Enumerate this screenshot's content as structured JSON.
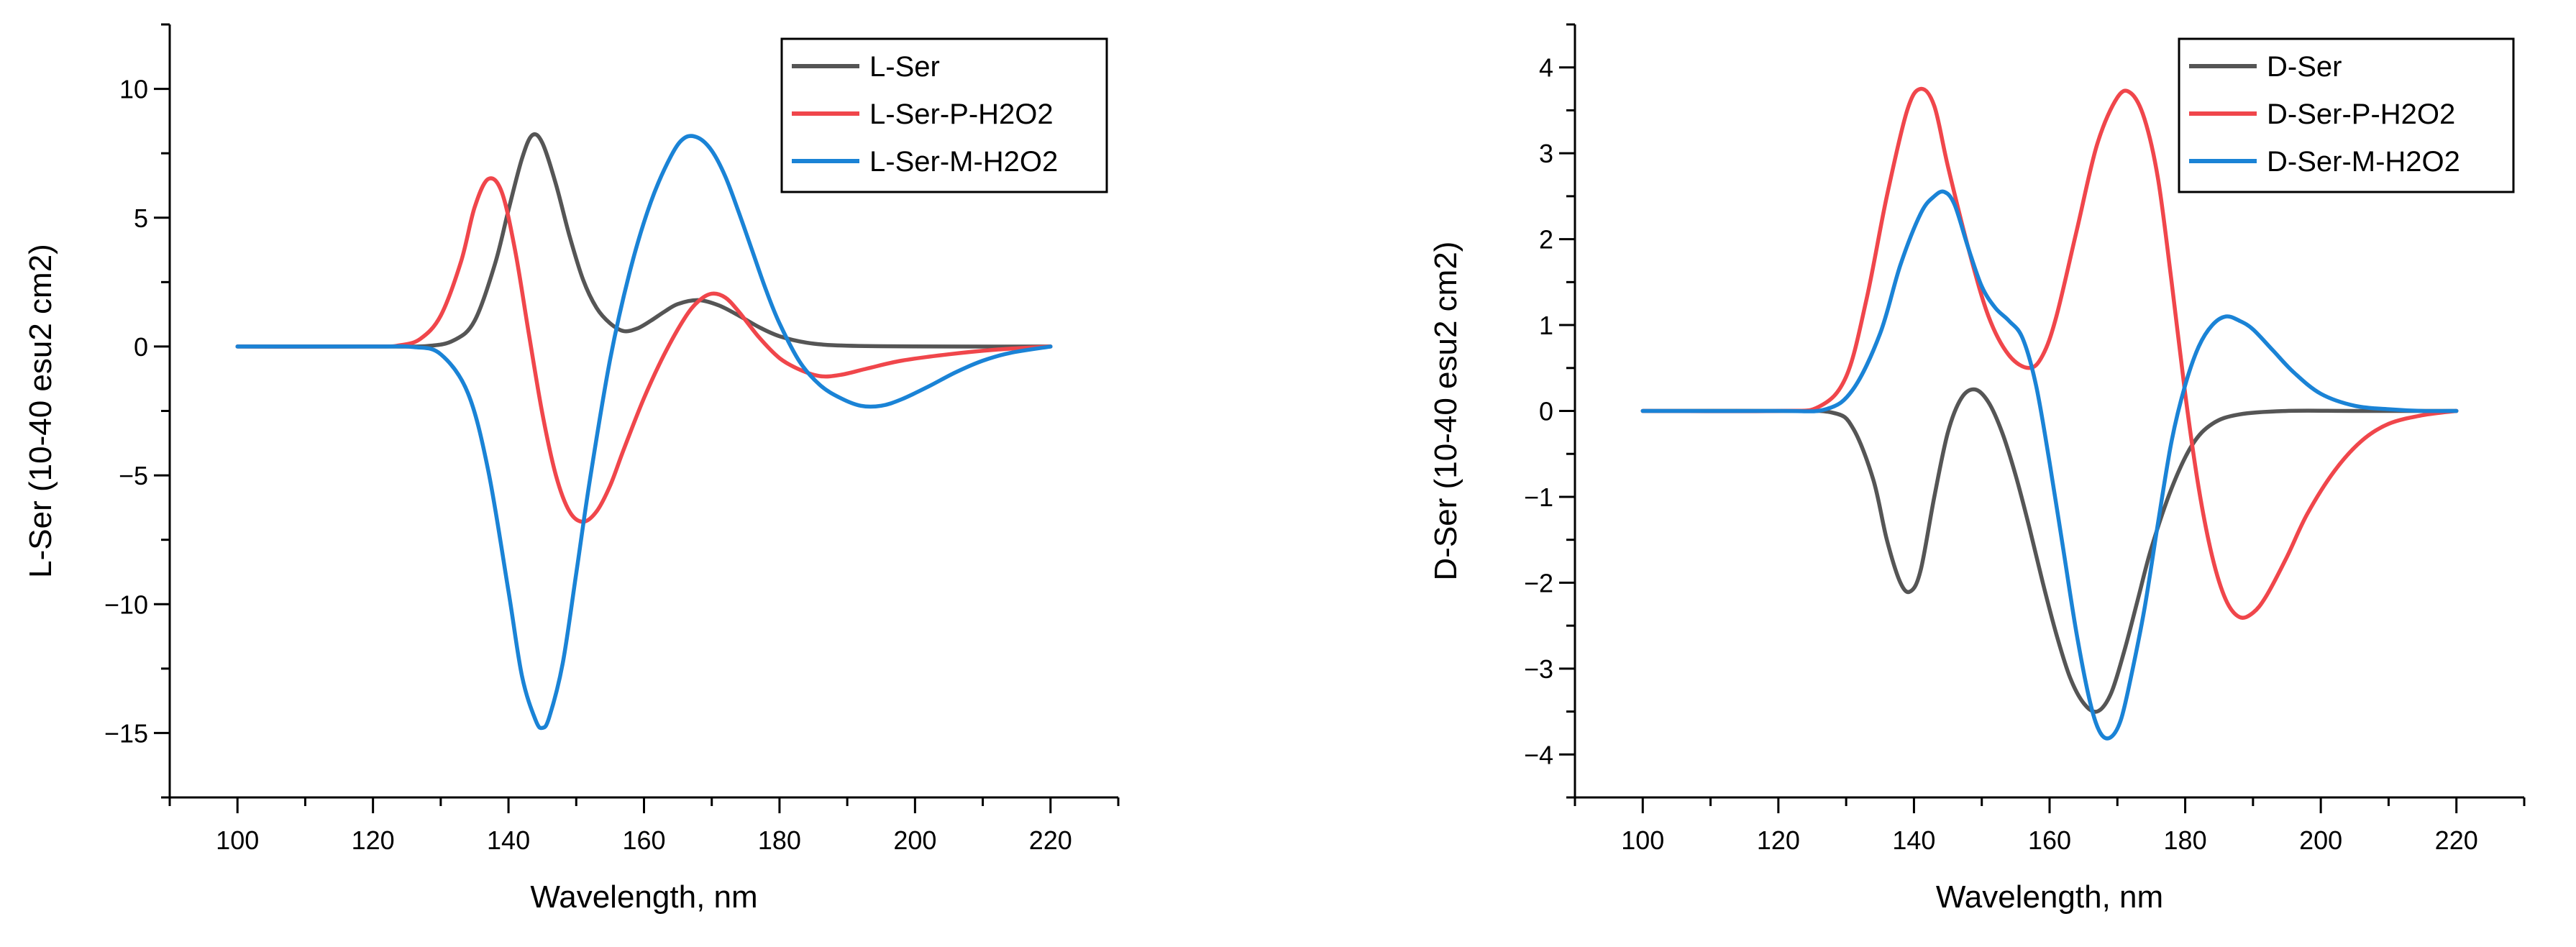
{
  "chart_data": [
    {
      "type": "line",
      "xlabel": "Wavelength, nm",
      "ylabel": "L-Ser (10-40 esu2 cm2)",
      "xlim": [
        90,
        230
      ],
      "ylim": [
        -17.5,
        12.5
      ],
      "xticks": [
        100,
        120,
        140,
        160,
        180,
        200,
        220
      ],
      "yticks": [
        -15,
        -10,
        -5,
        0,
        5,
        10
      ],
      "ytick_labels": [
        "−15",
        "−10",
        "−5",
        "0",
        "5",
        "10"
      ],
      "legend_position": "top-right",
      "series": [
        {
          "name": "L-Ser",
          "color": "#555555",
          "x": [
            100,
            120,
            128,
            132,
            135,
            138,
            140,
            142,
            143.5,
            145,
            147,
            149,
            151,
            153,
            155,
            157,
            159,
            161,
            163,
            165,
            168,
            171,
            174,
            177,
            180,
            184,
            188,
            195,
            205,
            220
          ],
          "y": [
            0,
            0,
            0.02,
            0.25,
            1.0,
            3.2,
            5.3,
            7.3,
            8.2,
            7.9,
            6.3,
            4.3,
            2.6,
            1.5,
            0.9,
            0.6,
            0.7,
            1.0,
            1.35,
            1.65,
            1.8,
            1.6,
            1.2,
            0.75,
            0.4,
            0.15,
            0.05,
            0.01,
            0,
            0
          ]
        },
        {
          "name": "L-Ser-P-H2O2",
          "color": "#f0464b",
          "x": [
            100,
            120,
            124,
            127,
            130,
            133,
            135,
            137,
            139,
            141,
            143,
            145,
            147,
            149,
            151,
            153,
            155,
            157,
            160,
            163,
            166,
            168,
            170,
            172,
            174,
            177,
            180,
            183,
            186,
            189,
            193,
            198,
            205,
            212,
            220
          ],
          "y": [
            0,
            0,
            0.05,
            0.3,
            1.2,
            3.3,
            5.4,
            6.5,
            6.0,
            3.7,
            0.5,
            -2.6,
            -5.0,
            -6.4,
            -6.8,
            -6.4,
            -5.4,
            -4.0,
            -2.0,
            -0.3,
            1.1,
            1.75,
            2.05,
            1.9,
            1.35,
            0.35,
            -0.45,
            -0.9,
            -1.15,
            -1.1,
            -0.85,
            -0.55,
            -0.3,
            -0.12,
            0
          ]
        },
        {
          "name": "L-Ser-M-H2O2",
          "color": "#1a83d6",
          "x": [
            100,
            120,
            126,
            130,
            134,
            137,
            140,
            142,
            144,
            145,
            146,
            148,
            150,
            152,
            155,
            158,
            161,
            164,
            166,
            168,
            170,
            172,
            174,
            176,
            178,
            180,
            183,
            186,
            189,
            192,
            195,
            198,
            202,
            206,
            210,
            214,
            220
          ],
          "y": [
            0,
            0,
            -0.02,
            -0.3,
            -1.8,
            -4.8,
            -9.5,
            -12.8,
            -14.5,
            -14.8,
            -14.4,
            -12.3,
            -8.8,
            -5.2,
            -0.5,
            3.0,
            5.6,
            7.4,
            8.1,
            8.1,
            7.6,
            6.6,
            5.2,
            3.7,
            2.2,
            0.9,
            -0.6,
            -1.5,
            -2.0,
            -2.3,
            -2.3,
            -2.05,
            -1.55,
            -1.0,
            -0.55,
            -0.25,
            0
          ]
        }
      ]
    },
    {
      "type": "line",
      "xlabel": "Wavelength, nm",
      "ylabel": "D-Ser (10-40 esu2 cm2)",
      "xlim": [
        90,
        230
      ],
      "ylim": [
        -4.5,
        4.5
      ],
      "xticks": [
        100,
        120,
        140,
        160,
        180,
        200,
        220
      ],
      "yticks": [
        -4,
        -3,
        -2,
        -1,
        0,
        1,
        2,
        3,
        4
      ],
      "ytick_labels": [
        "−4",
        "−3",
        "−2",
        "−1",
        "0",
        "1",
        "2",
        "3",
        "4"
      ],
      "legend_position": "top-right",
      "series": [
        {
          "name": "D-Ser",
          "color": "#555555",
          "x": [
            100,
            120,
            128,
            131,
            134,
            136,
            138,
            139.5,
            141,
            143,
            145,
            147,
            149,
            151,
            153,
            155,
            157,
            159,
            161,
            163,
            165,
            167,
            169,
            171,
            173,
            175,
            178,
            181,
            184,
            188,
            195,
            205,
            220
          ],
          "y": [
            0,
            0,
            -0.02,
            -0.2,
            -0.8,
            -1.5,
            -2.0,
            -2.1,
            -1.85,
            -1.0,
            -0.25,
            0.15,
            0.25,
            0.1,
            -0.25,
            -0.75,
            -1.35,
            -2.0,
            -2.6,
            -3.1,
            -3.4,
            -3.5,
            -3.3,
            -2.8,
            -2.2,
            -1.6,
            -0.9,
            -0.4,
            -0.15,
            -0.04,
            0,
            0,
            0
          ]
        },
        {
          "name": "D-Ser-P-H2O2",
          "color": "#f0464b",
          "x": [
            100,
            120,
            126,
            130,
            133,
            136,
            139,
            141,
            143,
            145,
            148,
            151,
            154,
            157,
            159,
            161,
            164,
            167,
            170,
            172,
            174,
            176,
            178,
            180,
            182,
            184,
            186,
            188,
            190,
            192,
            195,
            198,
            202,
            206,
            210,
            215,
            220
          ],
          "y": [
            0,
            0,
            0.05,
            0.4,
            1.3,
            2.5,
            3.5,
            3.75,
            3.55,
            2.85,
            1.9,
            1.1,
            0.65,
            0.5,
            0.65,
            1.1,
            2.1,
            3.1,
            3.65,
            3.7,
            3.4,
            2.7,
            1.5,
            0.2,
            -0.9,
            -1.7,
            -2.2,
            -2.4,
            -2.35,
            -2.15,
            -1.7,
            -1.2,
            -0.7,
            -0.35,
            -0.15,
            -0.05,
            0
          ]
        },
        {
          "name": "D-Ser-M-H2O2",
          "color": "#1a83d6",
          "x": [
            100,
            120,
            127,
            131,
            135,
            138,
            141,
            143,
            144.5,
            146,
            148,
            150,
            152,
            154,
            156,
            158,
            160,
            162,
            164,
            166,
            167.5,
            169,
            170.5,
            172,
            174,
            176,
            178,
            180,
            182,
            184,
            186,
            188,
            190,
            193,
            196,
            200,
            205,
            210,
            215,
            220
          ],
          "y": [
            0,
            0,
            0.02,
            0.25,
            0.9,
            1.7,
            2.3,
            2.5,
            2.55,
            2.4,
            1.9,
            1.45,
            1.2,
            1.05,
            0.85,
            0.3,
            -0.6,
            -1.6,
            -2.6,
            -3.4,
            -3.75,
            -3.8,
            -3.6,
            -3.1,
            -2.3,
            -1.3,
            -0.35,
            0.3,
            0.75,
            1.0,
            1.1,
            1.05,
            0.95,
            0.7,
            0.45,
            0.2,
            0.06,
            0.02,
            0,
            0
          ]
        }
      ]
    }
  ]
}
